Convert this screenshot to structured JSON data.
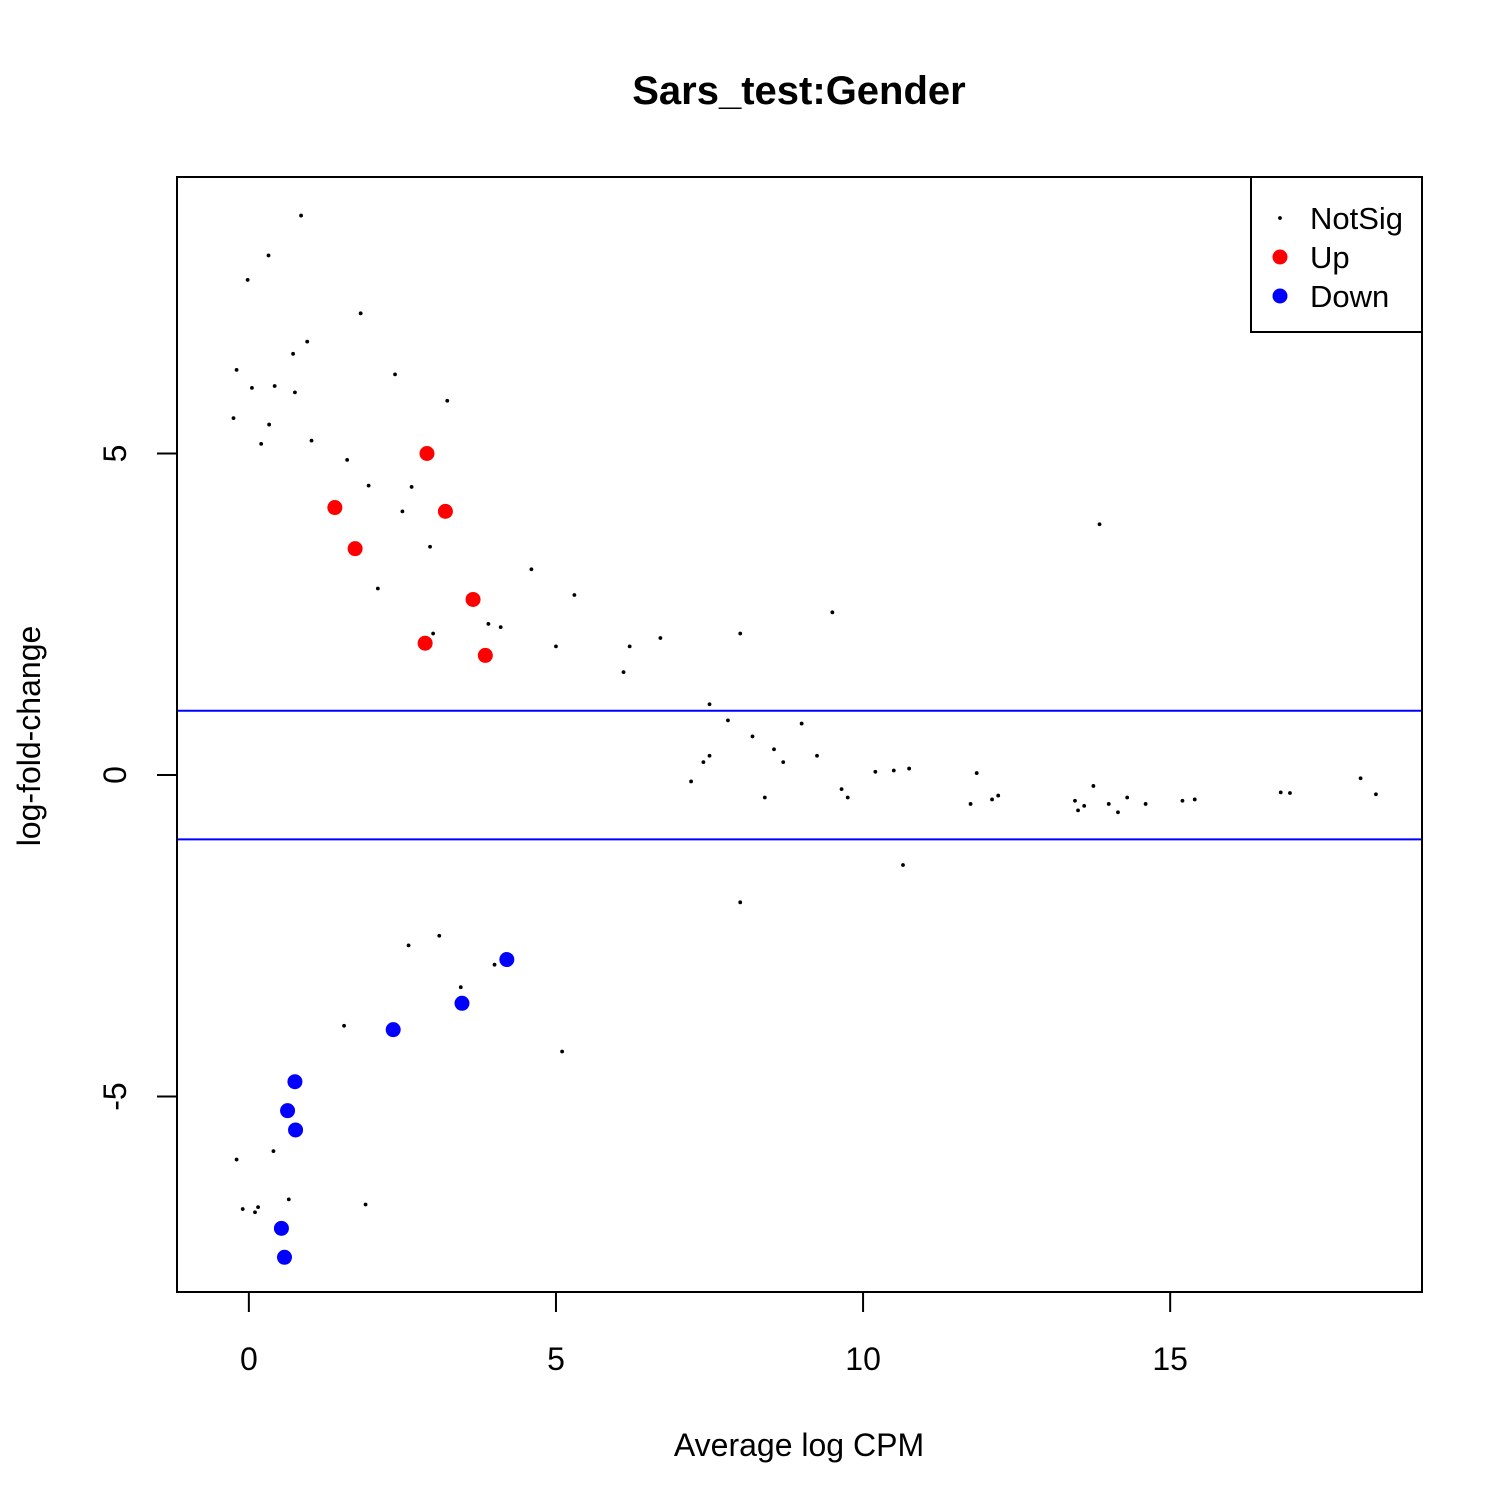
{
  "chart_data": {
    "type": "scatter",
    "title": "Sars_test:Gender",
    "xlabel": "Average log CPM",
    "ylabel": "log-fold-change",
    "xlim": [
      -1.17,
      19.1
    ],
    "ylim": [
      -8.04,
      9.3
    ],
    "x_ticks": [
      0,
      5,
      10,
      15
    ],
    "x_tick_labels": [
      "0",
      "5",
      "10",
      "15"
    ],
    "y_ticks": [
      -5,
      0,
      5
    ],
    "y_tick_labels": [
      "-5",
      "0",
      "5"
    ],
    "grid": false,
    "legend": {
      "position": "top-right",
      "entries": [
        {
          "label": "NotSig",
          "color": "#000000"
        },
        {
          "label": "Up",
          "color": "#ff0000"
        },
        {
          "label": "Down",
          "color": "#0000ff"
        }
      ]
    },
    "reference_lines": [
      {
        "y": 1,
        "color": "#0000ff"
      },
      {
        "y": -1,
        "color": "#0000ff"
      }
    ],
    "series": [
      {
        "name": "Up",
        "color": "#ff0000",
        "points": [
          {
            "x": 2.9,
            "y": 5.0
          },
          {
            "x": 1.4,
            "y": 4.16
          },
          {
            "x": 3.2,
            "y": 4.1
          },
          {
            "x": 1.73,
            "y": 3.52
          },
          {
            "x": 3.65,
            "y": 2.73
          },
          {
            "x": 2.87,
            "y": 2.05
          },
          {
            "x": 3.85,
            "y": 1.86
          }
        ]
      },
      {
        "name": "Down",
        "color": "#0000ff",
        "points": [
          {
            "x": 4.2,
            "y": -2.87
          },
          {
            "x": 3.47,
            "y": -3.55
          },
          {
            "x": 2.35,
            "y": -3.96
          },
          {
            "x": 0.75,
            "y": -4.77
          },
          {
            "x": 0.63,
            "y": -5.22
          },
          {
            "x": 0.76,
            "y": -5.52
          },
          {
            "x": 0.53,
            "y": -7.05
          },
          {
            "x": 0.58,
            "y": -7.5
          }
        ]
      },
      {
        "name": "NotSig",
        "color": "#000000",
        "points": [
          {
            "x": 0.85,
            "y": 8.7
          },
          {
            "x": 0.32,
            "y": 8.08
          },
          {
            "x": -0.02,
            "y": 7.7
          },
          {
            "x": 1.82,
            "y": 7.18
          },
          {
            "x": 0.95,
            "y": 6.74
          },
          {
            "x": 0.72,
            "y": 6.55
          },
          {
            "x": 2.38,
            "y": 6.23
          },
          {
            "x": -0.2,
            "y": 6.3
          },
          {
            "x": 0.05,
            "y": 6.02
          },
          {
            "x": 0.42,
            "y": 6.05
          },
          {
            "x": 3.23,
            "y": 5.82
          },
          {
            "x": 0.75,
            "y": 5.95
          },
          {
            "x": -0.25,
            "y": 5.55
          },
          {
            "x": 0.33,
            "y": 5.45
          },
          {
            "x": 0.2,
            "y": 5.15
          },
          {
            "x": 1.02,
            "y": 5.2
          },
          {
            "x": 1.6,
            "y": 4.9
          },
          {
            "x": 1.95,
            "y": 4.5
          },
          {
            "x": 2.65,
            "y": 4.48
          },
          {
            "x": 2.5,
            "y": 4.1
          },
          {
            "x": 13.85,
            "y": 3.9
          },
          {
            "x": 2.95,
            "y": 3.55
          },
          {
            "x": 4.6,
            "y": 3.2
          },
          {
            "x": 5.3,
            "y": 2.8
          },
          {
            "x": 9.5,
            "y": 2.53
          },
          {
            "x": 8.0,
            "y": 2.2
          },
          {
            "x": 6.7,
            "y": 2.13
          },
          {
            "x": 6.2,
            "y": 2.0
          },
          {
            "x": 6.1,
            "y": 1.6
          },
          {
            "x": 7.5,
            "y": 1.1
          },
          {
            "x": 7.8,
            "y": 0.85
          },
          {
            "x": 9.0,
            "y": 0.8
          },
          {
            "x": 8.2,
            "y": 0.6
          },
          {
            "x": 8.55,
            "y": 0.4
          },
          {
            "x": 8.7,
            "y": 0.2
          },
          {
            "x": 9.25,
            "y": 0.3
          },
          {
            "x": 10.2,
            "y": 0.05
          },
          {
            "x": 10.5,
            "y": 0.07
          },
          {
            "x": 10.75,
            "y": 0.1
          },
          {
            "x": 11.85,
            "y": 0.03
          },
          {
            "x": 9.65,
            "y": -0.22
          },
          {
            "x": 9.75,
            "y": -0.35
          },
          {
            "x": 11.75,
            "y": -0.45
          },
          {
            "x": 12.1,
            "y": -0.38
          },
          {
            "x": 12.2,
            "y": -0.32
          },
          {
            "x": 13.45,
            "y": -0.4
          },
          {
            "x": 13.5,
            "y": -0.55
          },
          {
            "x": 13.6,
            "y": -0.48
          },
          {
            "x": 13.75,
            "y": -0.17
          },
          {
            "x": 14.0,
            "y": -0.45
          },
          {
            "x": 14.15,
            "y": -0.58
          },
          {
            "x": 14.3,
            "y": -0.35
          },
          {
            "x": 14.6,
            "y": -0.45
          },
          {
            "x": 15.2,
            "y": -0.4
          },
          {
            "x": 15.4,
            "y": -0.38
          },
          {
            "x": 16.8,
            "y": -0.27
          },
          {
            "x": 16.95,
            "y": -0.28
          },
          {
            "x": 18.1,
            "y": -0.05
          },
          {
            "x": 18.35,
            "y": -0.3
          },
          {
            "x": 10.65,
            "y": -1.4
          },
          {
            "x": 8.0,
            "y": -1.98
          },
          {
            "x": 5.1,
            "y": -4.3
          },
          {
            "x": 1.9,
            "y": -6.68
          },
          {
            "x": 0.65,
            "y": -6.6
          },
          {
            "x": -0.1,
            "y": -6.75
          },
          {
            "x": 0.1,
            "y": -6.8
          },
          {
            "x": 0.15,
            "y": -6.72
          },
          {
            "x": -0.2,
            "y": -5.98
          },
          {
            "x": 0.4,
            "y": -5.85
          },
          {
            "x": 7.5,
            "y": 0.3
          },
          {
            "x": 7.4,
            "y": 0.2
          },
          {
            "x": 7.2,
            "y": -0.1
          },
          {
            "x": 8.4,
            "y": -0.35
          },
          {
            "x": 3.0,
            "y": 2.2
          },
          {
            "x": 3.9,
            "y": 2.35
          },
          {
            "x": 4.1,
            "y": 2.3
          },
          {
            "x": 5.0,
            "y": 2.0
          },
          {
            "x": 2.1,
            "y": 2.9
          },
          {
            "x": 3.45,
            "y": -3.3
          },
          {
            "x": 4.0,
            "y": -2.95
          },
          {
            "x": 1.55,
            "y": -3.9
          },
          {
            "x": 2.6,
            "y": -2.65
          },
          {
            "x": 3.1,
            "y": -2.5
          }
        ]
      }
    ]
  }
}
